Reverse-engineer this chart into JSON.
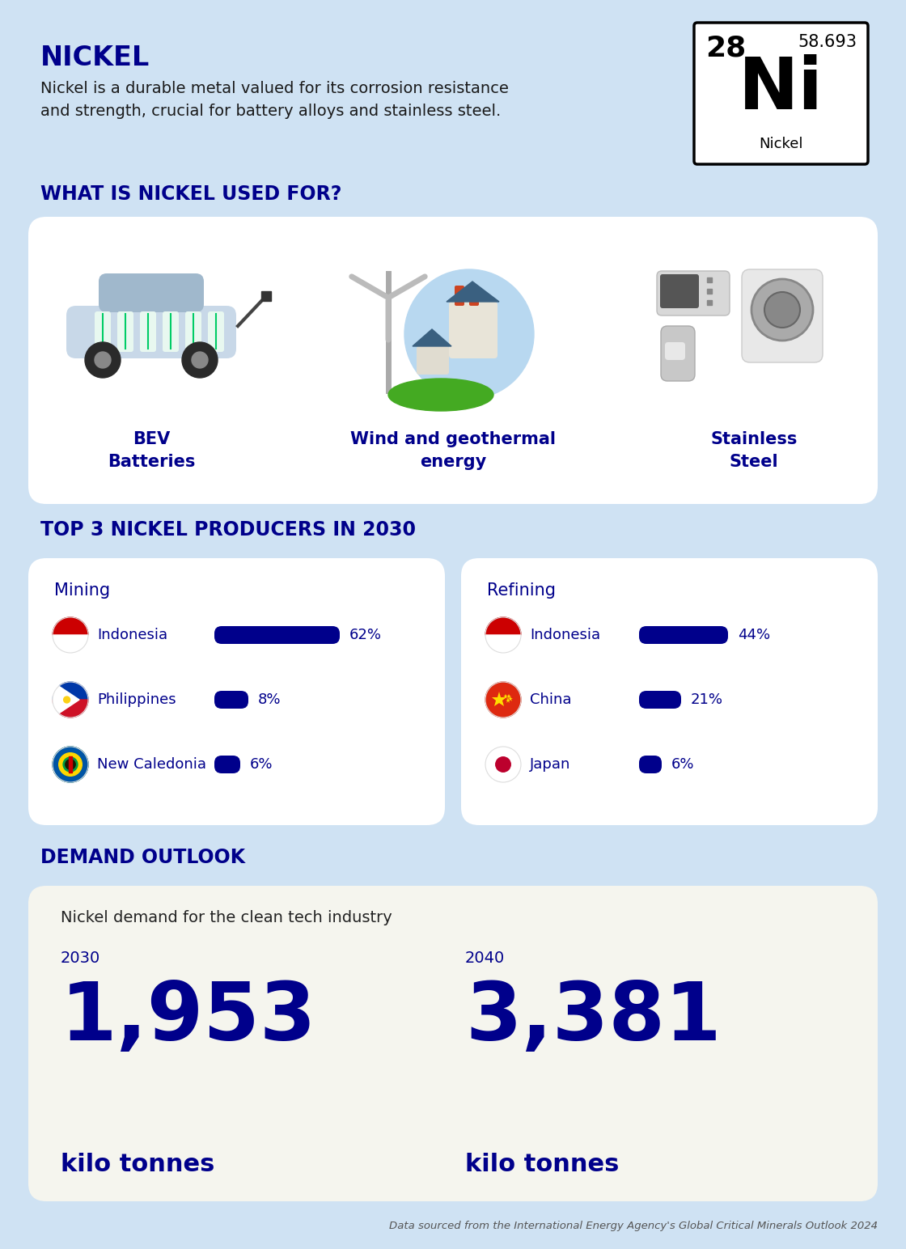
{
  "bg_color": "#cfe2f3",
  "title": "NICKEL",
  "title_color": "#00008B",
  "subtitle_line1": "Nickel is a durable metal valued for its corrosion resistance",
  "subtitle_line2": "and strength, crucial for battery alloys and stainless steel.",
  "element_number": "28",
  "element_weight": "58.693",
  "element_symbol": "Ni",
  "element_name": "Nickel",
  "used_for_title": "WHAT IS NICKEL USED FOR?",
  "uses": [
    "BEV\nBatteries",
    "Wind and geothermal\nenergy",
    "Stainless\nSteel"
  ],
  "producers_title": "TOP 3 NICKEL PRODUCERS IN 2030",
  "mining_title": "Mining",
  "mining_countries": [
    "Indonesia",
    "Philippines",
    "New Caledonia"
  ],
  "mining_values": [
    62,
    8,
    6
  ],
  "refining_title": "Refining",
  "refining_countries": [
    "Indonesia",
    "China",
    "Japan"
  ],
  "refining_values": [
    44,
    21,
    6
  ],
  "demand_title": "DEMAND OUTLOOK",
  "demand_subtitle": "Nickel demand for the clean tech industry",
  "demand_2030_label": "2030",
  "demand_2030_value": "1,953",
  "demand_2030_unit": "kilo tonnes",
  "demand_2040_label": "2040",
  "demand_2040_value": "3,381",
  "demand_2040_unit": "kilo tonnes",
  "dark_blue": "#00008B",
  "bar_color": "#00008B",
  "header_color": "#00008B",
  "card_bg": "#ffffff",
  "demand_card_bg": "#f5f5ee",
  "source_text": "Data sourced from the International Energy Agency's Global Critical Minerals Outlook 2024"
}
